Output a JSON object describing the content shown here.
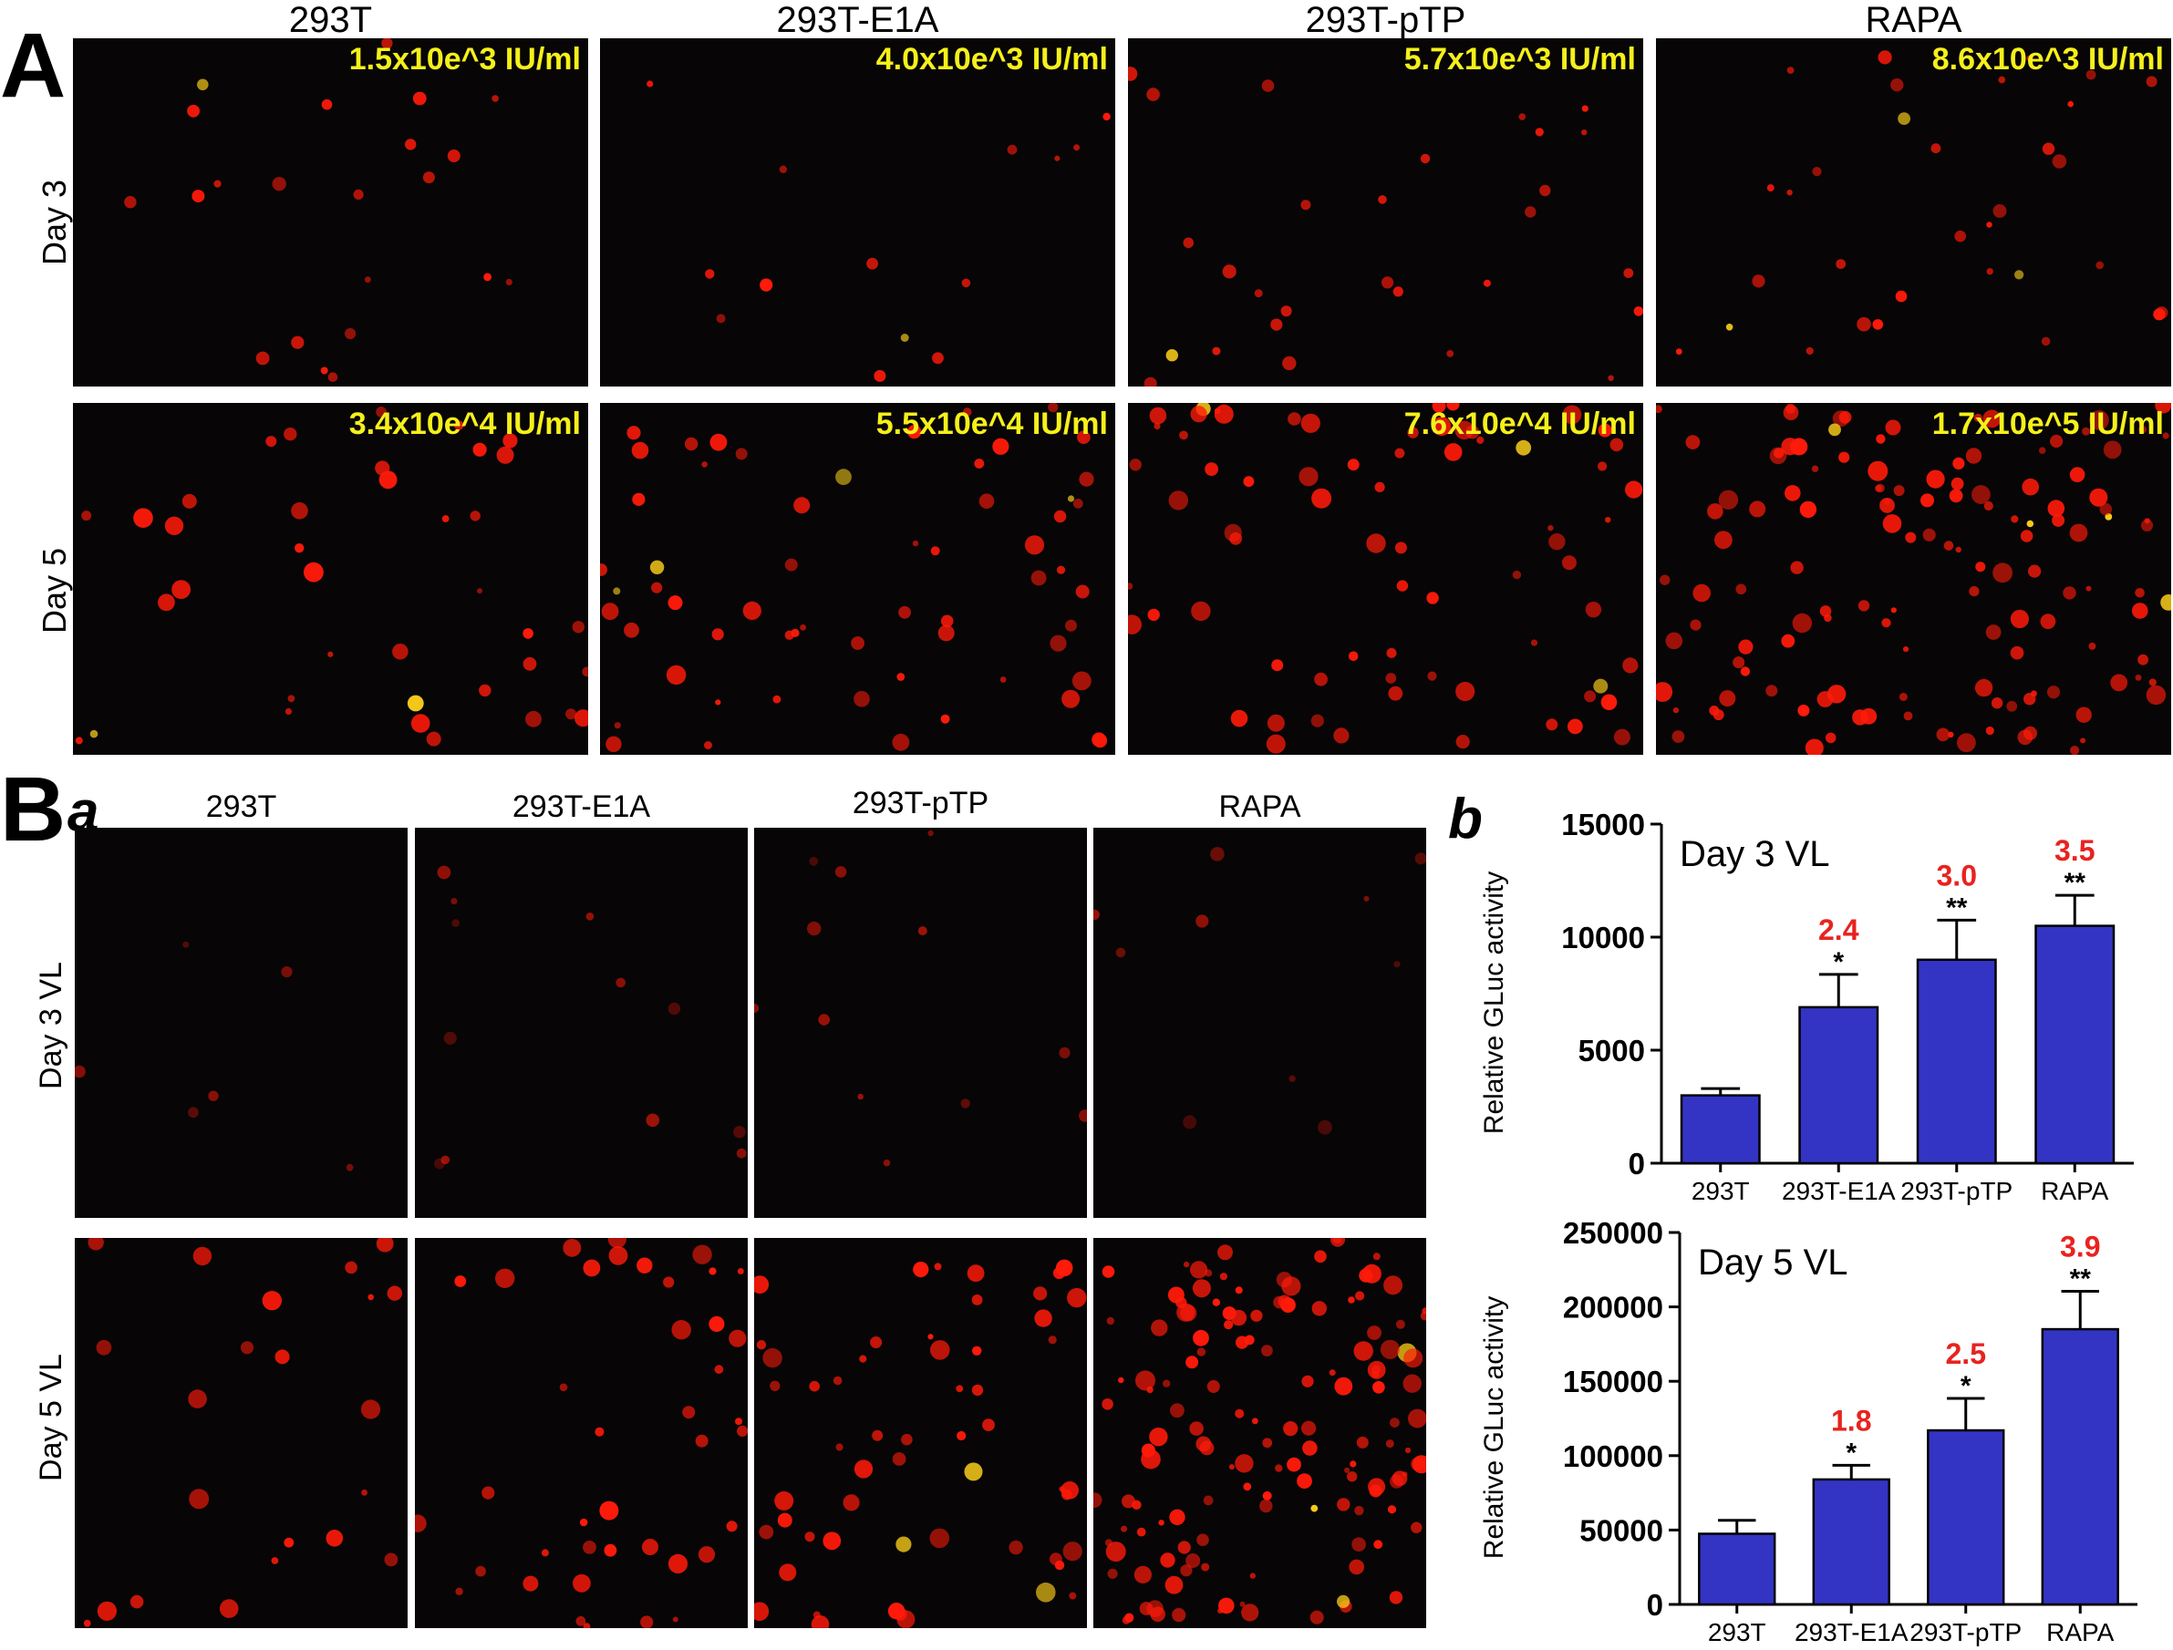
{
  "figure": {
    "panel_a_letter": "A",
    "panel_b_letter": "B",
    "panel_b_sub_a": "a",
    "panel_b_sub_b": "b"
  },
  "panel_a": {
    "columns": [
      "293T",
      "293T-E1A",
      "293T-pTP",
      "RAPA"
    ],
    "rows": [
      {
        "label": "Day 3",
        "titers": [
          "1.5x10e^3 IU/ml",
          "4.0x10e^3 IU/ml",
          "5.7x10e^3 IU/ml",
          "8.6x10e^3 IU/ml"
        ]
      },
      {
        "label": "Day 5",
        "titers": [
          "3.4x10e^4 IU/ml",
          "5.5x10e^4 IU/ml",
          "7.6x10e^4 IU/ml",
          "1.7x10e^5 IU/ml"
        ]
      }
    ]
  },
  "panel_ba": {
    "columns": [
      "293T",
      "293T-E1A",
      "293T-pTP",
      "RAPA"
    ],
    "rows": [
      {
        "label": "Day 3 VL"
      },
      {
        "label": "Day 5 VL"
      }
    ]
  },
  "colors": {
    "bar_fill": "#3434c4",
    "fold_text": "#e8231f",
    "titer_text": "#f5f01a",
    "cell_red": "#ff1a0a",
    "cell_bright": "#ffd21a",
    "micro_bg": "#070506"
  },
  "chart_data": [
    {
      "type": "bar",
      "title": "Day 3 VL",
      "ylabel": "Relative GLuc activity",
      "categories": [
        "293T",
        "293T-E1A",
        "293T-pTP",
        "RAPA"
      ],
      "values": [
        3000,
        6900,
        9000,
        10500
      ],
      "errors": [
        300,
        1450,
        1750,
        1350
      ],
      "fold_labels": [
        "",
        "2.4",
        "3.0",
        "3.5"
      ],
      "significance": [
        "",
        "*",
        "**",
        "**"
      ],
      "ylim": [
        0,
        15000
      ],
      "yticks": [
        0,
        5000,
        10000,
        15000
      ],
      "ytick_labels": [
        "0",
        "5000",
        "10000",
        "15000"
      ]
    },
    {
      "type": "bar",
      "title": "Day 5 VL",
      "ylabel": "Relative GLuc activity",
      "categories": [
        "293T",
        "293T-E1A",
        "293T-pTP",
        "RAPA"
      ],
      "values": [
        47500,
        84000,
        117000,
        185000
      ],
      "errors": [
        9000,
        9500,
        21500,
        25500
      ],
      "fold_labels": [
        "",
        "1.8",
        "2.5",
        "3.9"
      ],
      "significance": [
        "",
        "*",
        "*",
        "**"
      ],
      "ylim": [
        0,
        250000
      ],
      "yticks": [
        0,
        50000,
        100000,
        150000,
        200000,
        250000
      ],
      "ytick_labels": [
        "0",
        "50000",
        "100000",
        "150000",
        "200000",
        "250000"
      ]
    }
  ]
}
